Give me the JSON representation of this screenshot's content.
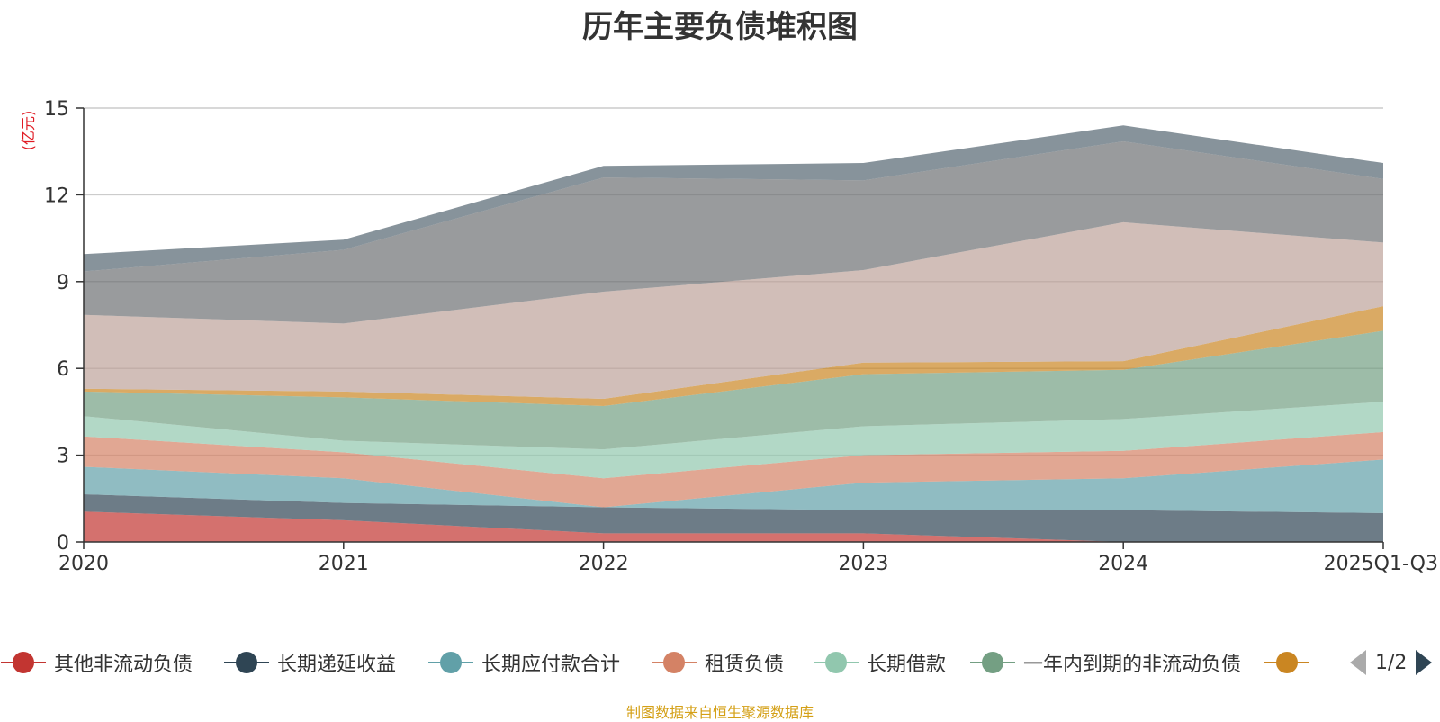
{
  "chart_data": {
    "type": "area",
    "stacked": true,
    "title": "历年主要负债堆积图",
    "ylabel": "(亿元)",
    "xlabel": "",
    "ylim": [
      0,
      15
    ],
    "yticks": [
      0,
      3,
      6,
      9,
      12,
      15
    ],
    "categories": [
      "2020",
      "2021",
      "2022",
      "2023",
      "2024",
      "2025Q1-Q3"
    ],
    "series": [
      {
        "name": "其他非流动负债",
        "color": "#c23531",
        "values": [
          1.05,
          0.75,
          0.3,
          0.3,
          0.0,
          0.0
        ]
      },
      {
        "name": "长期递延收益",
        "color": "#2f4554",
        "values": [
          0.6,
          0.6,
          0.9,
          0.8,
          1.1,
          1.0
        ]
      },
      {
        "name": "长期应付款合计",
        "color": "#61a0a8",
        "values": [
          0.95,
          0.85,
          0.0,
          0.95,
          1.1,
          1.85
        ]
      },
      {
        "name": "租赁负债",
        "color": "#d48265",
        "values": [
          1.05,
          0.9,
          1.0,
          0.95,
          0.95,
          0.95
        ]
      },
      {
        "name": "长期借款",
        "color": "#91c7ae",
        "values": [
          0.7,
          0.4,
          1.0,
          1.0,
          1.1,
          1.05
        ]
      },
      {
        "name": "一年内到期的非流动负债",
        "color": "#749f83",
        "values": [
          0.85,
          1.5,
          1.5,
          1.8,
          1.7,
          2.45
        ]
      },
      {
        "name": "",
        "color": "#ca8622",
        "values": [
          0.1,
          0.2,
          0.25,
          0.4,
          0.3,
          0.85
        ]
      },
      {
        "name": "",
        "color": "#bda29a",
        "values": [
          2.55,
          2.35,
          3.7,
          3.2,
          4.8,
          2.2
        ]
      },
      {
        "name": "",
        "color": "#6e7074",
        "values": [
          1.5,
          2.55,
          3.95,
          3.1,
          2.8,
          2.2
        ]
      },
      {
        "name": "",
        "color": "#546570",
        "values": [
          0.6,
          0.35,
          0.4,
          0.6,
          0.55,
          0.55
        ]
      }
    ]
  },
  "legend": {
    "items": [
      {
        "label": "其他非流动负债",
        "color": "#c23531"
      },
      {
        "label": "长期递延收益",
        "color": "#2f4554"
      },
      {
        "label": "长期应付款合计",
        "color": "#61a0a8"
      },
      {
        "label": "租赁负债",
        "color": "#d48265"
      },
      {
        "label": "长期借款",
        "color": "#91c7ae"
      },
      {
        "label": "一年内到期的非流动负债",
        "color": "#749f83"
      },
      {
        "label": "",
        "color": "#ca8622"
      }
    ],
    "page": "1/2",
    "prev_icon": "triangle-left-icon",
    "next_icon": "triangle-right-icon"
  },
  "source": "制图数据来自恒生聚源数据库"
}
